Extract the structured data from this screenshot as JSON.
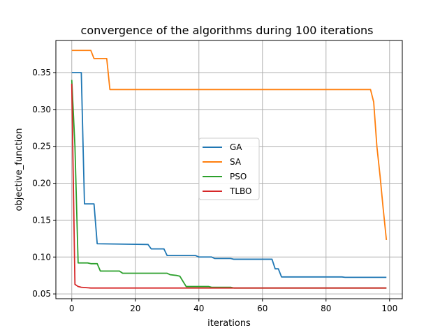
{
  "chart_data": {
    "type": "line",
    "title": "convergence of the algorithms during 100 iterations",
    "xlabel": "iterations",
    "ylabel": "objective_function",
    "xlim": [
      -5,
      104
    ],
    "ylim": [
      0.0435,
      0.3935
    ],
    "xticks": [
      0,
      20,
      40,
      60,
      80,
      100
    ],
    "yticks": [
      0.05,
      0.1,
      0.15,
      0.2,
      0.25,
      0.3,
      0.35
    ],
    "ytick_labels": [
      "0.05",
      "0.10",
      "0.15",
      "0.20",
      "0.25",
      "0.30",
      "0.35"
    ],
    "grid": true,
    "legend_position": "center",
    "series": [
      {
        "name": "GA",
        "color": "#1f77b4",
        "points": [
          [
            0,
            0.35
          ],
          [
            3,
            0.35
          ],
          [
            4,
            0.172
          ],
          [
            7,
            0.172
          ],
          [
            8,
            0.118
          ],
          [
            24,
            0.117
          ],
          [
            25,
            0.111
          ],
          [
            29,
            0.111
          ],
          [
            30,
            0.102
          ],
          [
            39,
            0.102
          ],
          [
            40,
            0.1
          ],
          [
            44,
            0.1
          ],
          [
            45,
            0.098
          ],
          [
            50,
            0.098
          ],
          [
            51,
            0.097
          ],
          [
            63,
            0.097
          ],
          [
            64,
            0.084
          ],
          [
            65,
            0.084
          ],
          [
            66,
            0.073
          ],
          [
            85,
            0.073
          ],
          [
            86,
            0.0725
          ],
          [
            99,
            0.0725
          ]
        ]
      },
      {
        "name": "SA",
        "color": "#ff7f0e",
        "points": [
          [
            0,
            0.38
          ],
          [
            6,
            0.38
          ],
          [
            7,
            0.369
          ],
          [
            11,
            0.369
          ],
          [
            12,
            0.327
          ],
          [
            94,
            0.327
          ],
          [
            95,
            0.31
          ],
          [
            96,
            0.25
          ],
          [
            97,
            0.21
          ],
          [
            98,
            0.165
          ],
          [
            99,
            0.123
          ]
        ]
      },
      {
        "name": "PSO",
        "color": "#2ca02c",
        "points": [
          [
            0,
            0.34
          ],
          [
            1,
            0.25
          ],
          [
            2,
            0.092
          ],
          [
            5,
            0.092
          ],
          [
            6,
            0.091
          ],
          [
            8,
            0.091
          ],
          [
            9,
            0.081
          ],
          [
            15,
            0.081
          ],
          [
            16,
            0.078
          ],
          [
            30,
            0.078
          ],
          [
            31,
            0.076
          ],
          [
            33,
            0.075
          ],
          [
            34,
            0.074
          ],
          [
            36,
            0.06
          ],
          [
            43,
            0.06
          ],
          [
            44,
            0.059
          ],
          [
            50,
            0.059
          ],
          [
            51,
            0.058
          ],
          [
            99,
            0.058
          ]
        ]
      },
      {
        "name": "TLBO",
        "color": "#d62728",
        "points": [
          [
            0,
            0.335
          ],
          [
            1,
            0.063
          ],
          [
            2,
            0.06
          ],
          [
            3,
            0.059
          ],
          [
            6,
            0.058
          ],
          [
            99,
            0.058
          ]
        ]
      }
    ]
  }
}
